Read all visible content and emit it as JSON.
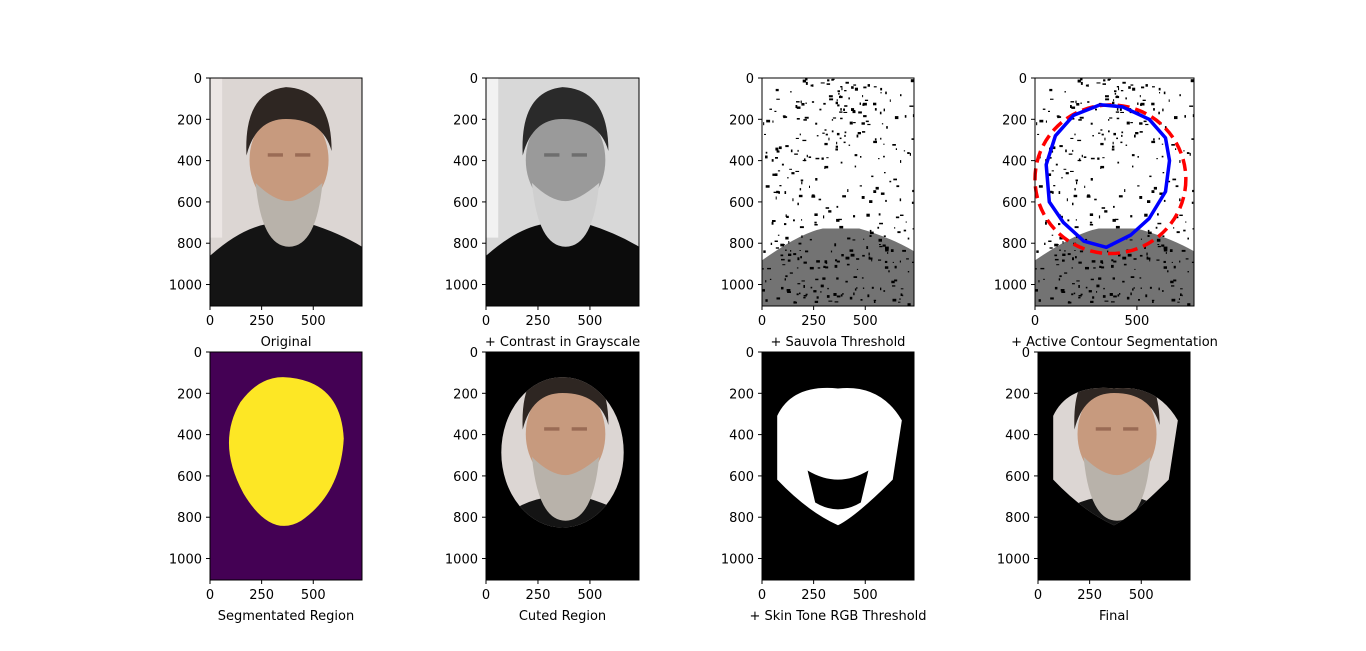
{
  "chart_data": [
    {
      "type": "image",
      "xlabel": "Original",
      "xticks": [
        0,
        250,
        500
      ],
      "yticks": [
        0,
        200,
        400,
        600,
        800,
        1000
      ],
      "xlim": [
        0,
        736
      ],
      "ylim": [
        1104,
        0
      ]
    },
    {
      "type": "image",
      "xlabel": "+ Contrast in Grayscale",
      "xticks": [
        0,
        250,
        500
      ],
      "yticks": [
        0,
        200,
        400,
        600,
        800,
        1000
      ],
      "xlim": [
        0,
        736
      ],
      "ylim": [
        1104,
        0
      ]
    },
    {
      "type": "image",
      "xlabel": "+ Sauvola Threshold",
      "xticks": [
        0,
        250,
        500
      ],
      "yticks": [
        0,
        200,
        400,
        600,
        800,
        1000
      ],
      "xlim": [
        0,
        736
      ],
      "ylim": [
        1104,
        0
      ]
    },
    {
      "type": "image",
      "xlabel": "+ Active Contour Segmentation",
      "xticks": [
        0,
        500
      ],
      "yticks": [
        0,
        200,
        400,
        600,
        800,
        1000
      ],
      "xlim": [
        0,
        780
      ],
      "ylim": [
        1104,
        0
      ],
      "overlays": [
        {
          "kind": "ellipse",
          "style": "dashed",
          "color": "#ff0000",
          "center": [
            370,
            490
          ],
          "radii": [
            370,
            360
          ]
        },
        {
          "kind": "contour",
          "style": "solid",
          "color": "#0000ff",
          "points": [
            [
              320,
              130
            ],
            [
              430,
              140
            ],
            [
              560,
              200
            ],
            [
              640,
              290
            ],
            [
              660,
              400
            ],
            [
              640,
              550
            ],
            [
              560,
              680
            ],
            [
              470,
              760
            ],
            [
              350,
              820
            ],
            [
              240,
              790
            ],
            [
              140,
              700
            ],
            [
              70,
              600
            ],
            [
              55,
              420
            ],
            [
              100,
              280
            ],
            [
              190,
              180
            ],
            [
              320,
              130
            ]
          ]
        }
      ]
    },
    {
      "type": "image",
      "xlabel": "Segmentated Region",
      "xticks": [
        0,
        250,
        500
      ],
      "yticks": [
        0,
        200,
        400,
        600,
        800,
        1000
      ],
      "xlim": [
        0,
        736
      ],
      "ylim": [
        1104,
        0
      ],
      "colors": {
        "background": "#440154",
        "region": "#fde725"
      }
    },
    {
      "type": "image",
      "xlabel": "Cuted Region",
      "xticks": [
        0,
        250,
        500
      ],
      "yticks": [
        0,
        200,
        400,
        600,
        800,
        1000
      ],
      "xlim": [
        0,
        736
      ],
      "ylim": [
        1104,
        0
      ]
    },
    {
      "type": "image",
      "xlabel": "+ Skin Tone RGB Threshold",
      "xticks": [
        0,
        250,
        500
      ],
      "yticks": [
        0,
        200,
        400,
        600,
        800,
        1000
      ],
      "xlim": [
        0,
        736
      ],
      "ylim": [
        1104,
        0
      ]
    },
    {
      "type": "image",
      "xlabel": "Final",
      "xticks": [
        0,
        250,
        500
      ],
      "yticks": [
        0,
        200,
        400,
        600,
        800,
        1000
      ],
      "xlim": [
        0,
        736
      ],
      "ylim": [
        1104,
        0
      ]
    }
  ]
}
